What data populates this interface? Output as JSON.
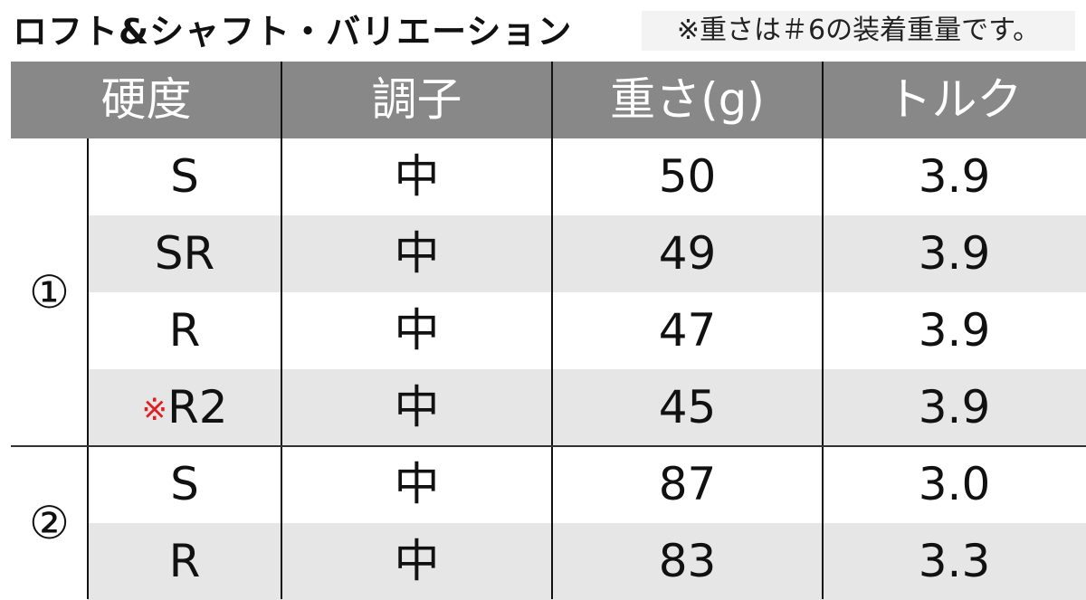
{
  "title": "ロフト&シャフト・バリエーション",
  "note": "※重さは＃6の装着重量です。",
  "colors": {
    "header_bg": "#888888",
    "alt_row_bg": "#e6e6e6",
    "note_mark": "#e02020"
  },
  "table": {
    "headers": [
      "硬度",
      "調子",
      "重さ(g)",
      "トルク"
    ],
    "groups": [
      {
        "label": "①",
        "rows": [
          {
            "mark": "",
            "flex": "S",
            "kick": "中",
            "weight": "50",
            "torque": "3.9"
          },
          {
            "mark": "",
            "flex": "SR",
            "kick": "中",
            "weight": "49",
            "torque": "3.9"
          },
          {
            "mark": "",
            "flex": "R",
            "kick": "中",
            "weight": "47",
            "torque": "3.9"
          },
          {
            "mark": "※",
            "flex": "R2",
            "kick": "中",
            "weight": "45",
            "torque": "3.9"
          }
        ]
      },
      {
        "label": "②",
        "rows": [
          {
            "mark": "",
            "flex": "S",
            "kick": "中",
            "weight": "87",
            "torque": "3.0"
          },
          {
            "mark": "",
            "flex": "R",
            "kick": "中",
            "weight": "83",
            "torque": "3.3"
          }
        ]
      }
    ]
  }
}
